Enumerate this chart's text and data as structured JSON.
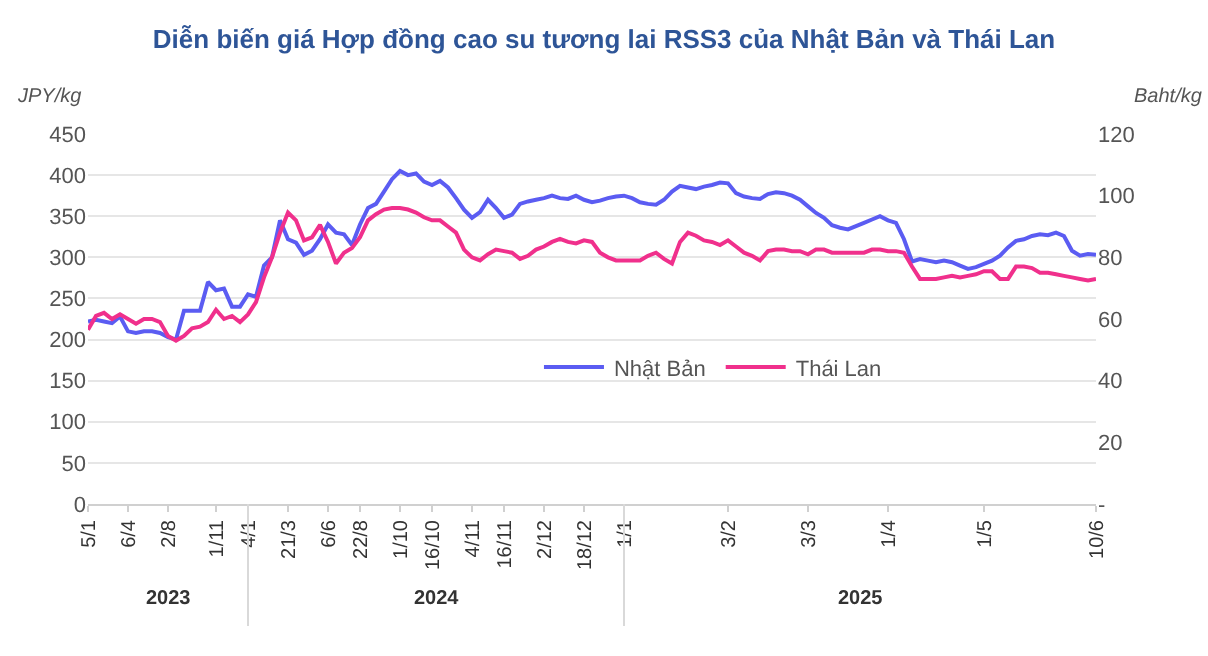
{
  "chart_data": {
    "type": "line",
    "title": "Diễn biến giá Hợp đồng cao su tương lai RSS3 của Nhật Bản và Thái Lan",
    "ylabel": "JPY/kg",
    "y2label": "Baht/kg",
    "categories": [
      "5/1",
      null,
      null,
      null,
      null,
      "6/4",
      null,
      null,
      null,
      null,
      "2/8",
      null,
      null,
      null,
      null,
      null,
      "1/11",
      null,
      null,
      null,
      "4/1",
      null,
      null,
      null,
      null,
      "21/3",
      null,
      null,
      null,
      null,
      "6/6",
      null,
      null,
      null,
      "22/8",
      null,
      null,
      null,
      null,
      "1/10",
      null,
      null,
      null,
      "16/10",
      null,
      null,
      null,
      null,
      "4/11",
      null,
      null,
      null,
      "16/11",
      null,
      null,
      null,
      null,
      "2/12",
      null,
      null,
      null,
      null,
      "18/12",
      null,
      null,
      null,
      null,
      "1/1",
      null,
      null,
      null,
      null,
      null,
      null,
      null,
      null,
      null,
      null,
      null,
      null,
      "3/2",
      null,
      null,
      null,
      null,
      null,
      null,
      null,
      null,
      null,
      "3/3",
      null,
      null,
      null,
      null,
      null,
      null,
      null,
      null,
      null,
      "1/4",
      null,
      null,
      null,
      null,
      null,
      null,
      null,
      null,
      null,
      null,
      null,
      "1/5",
      null,
      null,
      null,
      null,
      null,
      null,
      null,
      null,
      null,
      null,
      null,
      null,
      null,
      "10/6"
    ],
    "annotations": [
      "2023",
      "2024",
      "2025"
    ],
    "series": [
      {
        "name": "Nhật Bản",
        "color": "#5b5cf2",
        "values": [
          222,
          224,
          222,
          220,
          228,
          210,
          208,
          210,
          210,
          208,
          203,
          200,
          235,
          235,
          235,
          270,
          260,
          262,
          240,
          240,
          255,
          252,
          290,
          300,
          345,
          322,
          318,
          303,
          308,
          322,
          340,
          330,
          328,
          315,
          340,
          360,
          365,
          380,
          395,
          405,
          400,
          402,
          392,
          388,
          393,
          385,
          372,
          358,
          348,
          355,
          370,
          360,
          348,
          352,
          365,
          368,
          370,
          372,
          375,
          372,
          371,
          375,
          370,
          367,
          369,
          372,
          374,
          375,
          372,
          367,
          365,
          364,
          370,
          380,
          387,
          385,
          383,
          386,
          388,
          391,
          390,
          378,
          374,
          372,
          371,
          377,
          379,
          378,
          375,
          370,
          362,
          354,
          348,
          339,
          336,
          334,
          338,
          342,
          346,
          350,
          345,
          342,
          322,
          295,
          298,
          296,
          294,
          296,
          294,
          290,
          286,
          288,
          292,
          296,
          302,
          312,
          320,
          322,
          326,
          328,
          327,
          330,
          326,
          308,
          302,
          304,
          303
        ]
      },
      {
        "name": "Thái Lan",
        "color": "#f0308c",
        "axis": "y2",
        "values": [
          56.5,
          61,
          62,
          60,
          61.5,
          60,
          58.5,
          60,
          60,
          59,
          54.5,
          53,
          54.5,
          57,
          57.5,
          59,
          63,
          60,
          61,
          59,
          61.5,
          65.5,
          73.5,
          80,
          88,
          94.5,
          92,
          85.5,
          86.5,
          90.5,
          85,
          78,
          81.5,
          83,
          86.5,
          92,
          94,
          95.5,
          96,
          96,
          95.5,
          94.5,
          93,
          92,
          92,
          90,
          88,
          82.5,
          80,
          79,
          81,
          82.5,
          82,
          81.5,
          79.5,
          80.5,
          82.5,
          83.5,
          85,
          86,
          85,
          84.5,
          85.5,
          85,
          81.5,
          80,
          79,
          79,
          79,
          79,
          80.5,
          81.5,
          79.5,
          78,
          85,
          88,
          87,
          85.5,
          85,
          84,
          85.5,
          83.5,
          81.5,
          80.5,
          79,
          82,
          82.5,
          82.5,
          82,
          82,
          81,
          82.5,
          82.5,
          81.5,
          81.5,
          81.5,
          81.5,
          81.5,
          82.5,
          82.5,
          82,
          82,
          81.5,
          77,
          73,
          73,
          73,
          73.5,
          74,
          73.5,
          74,
          74.5,
          75.5,
          75.5,
          73,
          73,
          77,
          77,
          76.5,
          75,
          75,
          74.5,
          74,
          73.5,
          73,
          72.5,
          73
        ]
      }
    ],
    "ylim": [
      0,
      450
    ],
    "yticks": [
      0,
      50,
      100,
      150,
      200,
      250,
      300,
      350,
      400,
      450
    ],
    "y2lim": [
      0,
      120
    ],
    "y2ticks": [
      {
        "value": 0,
        "label": "-"
      },
      20,
      40,
      60,
      80,
      100,
      120
    ],
    "grid": "y",
    "legend": "bottom",
    "marker": "none",
    "line_style": "solid"
  }
}
